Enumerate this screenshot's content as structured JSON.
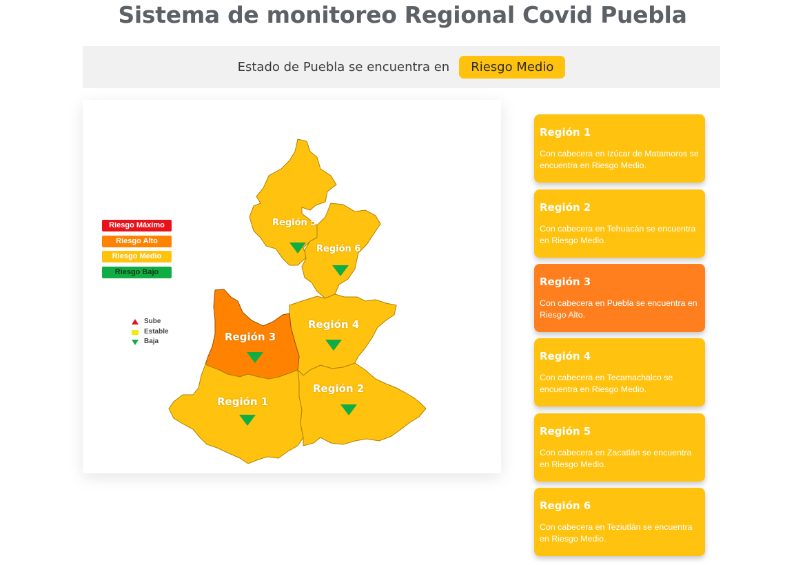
{
  "header": {
    "title": "Sistema de monitoreo Regional Covid Puebla"
  },
  "status": {
    "text": "Estado de Puebla se encuentra en",
    "badge": "Riesgo Medio",
    "badge_color": "#ffc20e"
  },
  "map": {
    "legend": {
      "risk_levels": [
        {
          "label": "Riesgo Máximo",
          "color": "#e8121b"
        },
        {
          "label": "Riesgo Alto",
          "color": "#ff8200"
        },
        {
          "label": "Riesgo Medio",
          "color": "#ffc20e"
        },
        {
          "label": "Riesgo Bajo",
          "color": "#10ad45"
        }
      ],
      "trends": [
        {
          "label": "Sube",
          "icon": "triangle-up-icon",
          "color": "#e8121b"
        },
        {
          "label": "Estable",
          "icon": "square-icon",
          "color": "#f5e90a"
        },
        {
          "label": "Baja",
          "icon": "triangle-down-icon",
          "color": "#10ad45"
        }
      ]
    },
    "regions": [
      {
        "label": "Región 1",
        "risk": "Riesgo Medio",
        "trend": "Baja",
        "color": "#ffc20e"
      },
      {
        "label": "Región 2",
        "risk": "Riesgo Medio",
        "trend": "Baja",
        "color": "#ffc20e"
      },
      {
        "label": "Región 3",
        "risk": "Riesgo Alto",
        "trend": "Baja",
        "color": "#ff8200"
      },
      {
        "label": "Región 4",
        "risk": "Riesgo Medio",
        "trend": "Baja",
        "color": "#ffc20e"
      },
      {
        "label": "Región 5",
        "risk": "Riesgo Medio",
        "trend": "Baja",
        "color": "#ffc20e"
      },
      {
        "label": "Región 6",
        "risk": "Riesgo Medio",
        "trend": "Baja",
        "color": "#ffc20e"
      }
    ]
  },
  "cards": [
    {
      "title": "Región 1",
      "body": "Con cabecera en Izúcar de Matamoros se encuentra en Riesgo Medio.",
      "color": "#ffc20e"
    },
    {
      "title": "Región 2",
      "body": "Con cabecera en Tehuacán se encuentra en Riesgo Medio.",
      "color": "#ffc20e"
    },
    {
      "title": "Región 3",
      "body": "Con cabecera en Puebla se encuentra en Riesgo Alto.",
      "color": "#ff7f1f"
    },
    {
      "title": "Región 4",
      "body": "Con cabecera en Tecamachalco se encuentra en Riesgo Medio.",
      "color": "#ffc20e"
    },
    {
      "title": "Región 5",
      "body": "Con cabecera en Zacatlán se encuentra en Riesgo Medio.",
      "color": "#ffc20e"
    },
    {
      "title": "Región 6",
      "body": "Con cabecera en Teziutlán se encuentra en Riesgo Medio.",
      "color": "#ffc20e"
    }
  ]
}
